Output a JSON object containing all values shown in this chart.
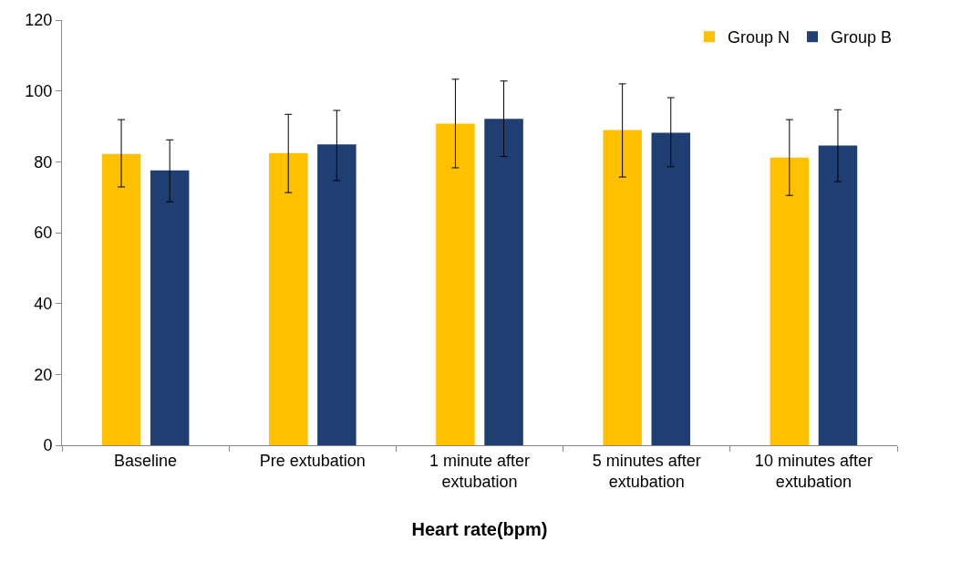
{
  "chart_data": {
    "type": "bar",
    "xlabel": "Heart rate(bpm)",
    "categories": [
      "Baseline",
      "Pre extubation",
      "1 minute after extubation",
      "5 minutes after extubation",
      "10 minutes after extubation"
    ],
    "series": [
      {
        "name": "Group N",
        "color": "#ffc000",
        "values": [
          82.2,
          82.5,
          90.8,
          89.0,
          81.2
        ],
        "errors": [
          [
            72.9,
            91.9
          ],
          [
            71.3,
            93.4
          ],
          [
            78.3,
            103.3
          ],
          [
            75.7,
            102.0
          ],
          [
            70.5,
            91.9
          ]
        ]
      },
      {
        "name": "Group B",
        "color": "#1f3f73",
        "values": [
          77.6,
          84.9,
          92.1,
          88.2,
          84.6
        ],
        "errors": [
          [
            68.7,
            86.2
          ],
          [
            74.7,
            94.5
          ],
          [
            81.5,
            102.8
          ],
          [
            78.6,
            98.1
          ],
          [
            74.4,
            94.7
          ]
        ]
      }
    ],
    "ylim": [
      0,
      120
    ],
    "yticks": [
      0,
      20,
      40,
      60,
      80,
      100,
      120
    ],
    "grid": false,
    "legend": "top right"
  }
}
